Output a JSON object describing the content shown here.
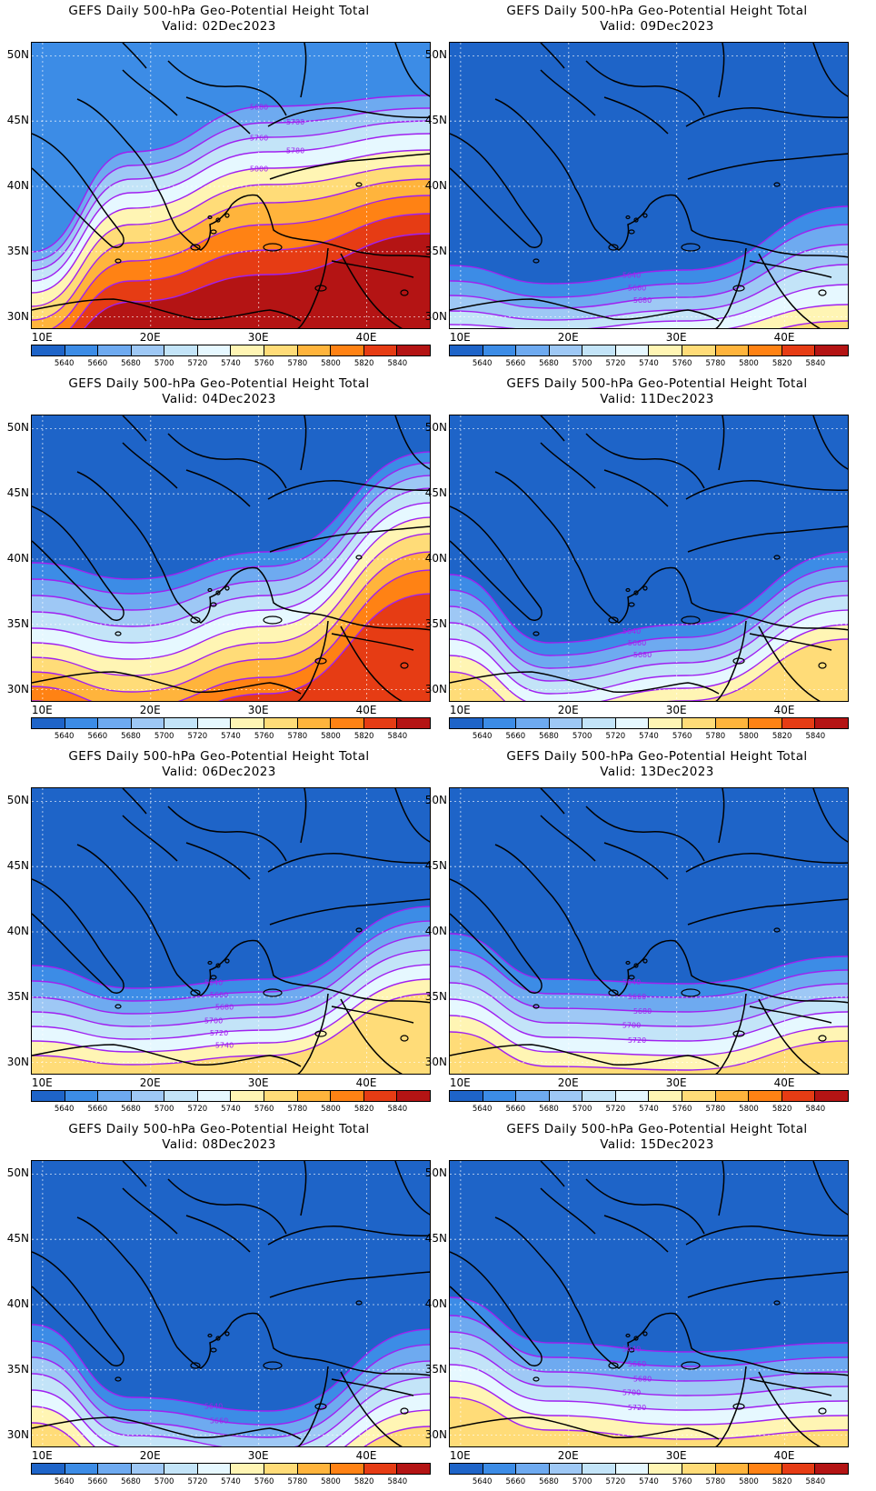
{
  "title_line": "GEFS Daily 500-hPa Geo-Potential Height Total",
  "valid_prefix": "Valid:",
  "lat_labels": [
    "50N",
    "45N",
    "40N",
    "35N",
    "30N"
  ],
  "lon_labels": [
    "10E",
    "20E",
    "30E",
    "40E"
  ],
  "colorbar": {
    "labels": [
      "5640",
      "5660",
      "5680",
      "5700",
      "5720",
      "5740",
      "5760",
      "5780",
      "5800",
      "5820",
      "5840"
    ],
    "colors": [
      "#1e64c8",
      "#3c8ce6",
      "#6eaaf0",
      "#9ec8f5",
      "#c3e4f8",
      "#e6f8ff",
      "#fff5b4",
      "#ffdc78",
      "#ffb43c",
      "#ff8214",
      "#e63c14",
      "#b41414"
    ]
  },
  "contour_line_color": "#a020f0",
  "panels": [
    {
      "date": "02Dec2023",
      "contour_labels": [
        "5680",
        "5700",
        "5760",
        "5780",
        "5800"
      ]
    },
    {
      "date": "09Dec2023",
      "contour_labels": [
        "5640",
        "5660",
        "5680"
      ]
    },
    {
      "date": "04Dec2023",
      "contour_labels": []
    },
    {
      "date": "11Dec2023",
      "contour_labels": [
        "5640",
        "5660",
        "5680"
      ]
    },
    {
      "date": "06Dec2023",
      "contour_labels": [
        "5640",
        "5660",
        "5680",
        "5700",
        "5720",
        "5740"
      ]
    },
    {
      "date": "13Dec2023",
      "contour_labels": [
        "5640",
        "5660",
        "5680",
        "5700",
        "5720"
      ]
    },
    {
      "date": "08Dec2023",
      "contour_labels": [
        "5640",
        "5660"
      ]
    },
    {
      "date": "15Dec2023",
      "contour_labels": [
        "5640",
        "5660",
        "5680",
        "5700",
        "5720"
      ]
    }
  ],
  "chart_data": {
    "type": "heatmap",
    "field": "500-hPa geopotential height",
    "lon_range": [
      9,
      46
    ],
    "lat_range": [
      29,
      51
    ],
    "levels": [
      5640,
      5660,
      5680,
      5700,
      5720,
      5740,
      5760,
      5780,
      5800,
      5820,
      5840
    ],
    "panels": [
      {
        "valid": "02Dec2023",
        "max_level_shown": 5820
      },
      {
        "valid": "09Dec2023",
        "max_level_shown": 5760
      },
      {
        "valid": "04Dec2023",
        "max_level_shown": 5800
      },
      {
        "valid": "11Dec2023",
        "max_level_shown": 5760
      },
      {
        "valid": "06Dec2023",
        "max_level_shown": 5760
      },
      {
        "valid": "13Dec2023",
        "max_level_shown": 5760
      },
      {
        "valid": "08Dec2023",
        "max_level_shown": 5760
      },
      {
        "valid": "15Dec2023",
        "max_level_shown": 5760
      }
    ]
  }
}
